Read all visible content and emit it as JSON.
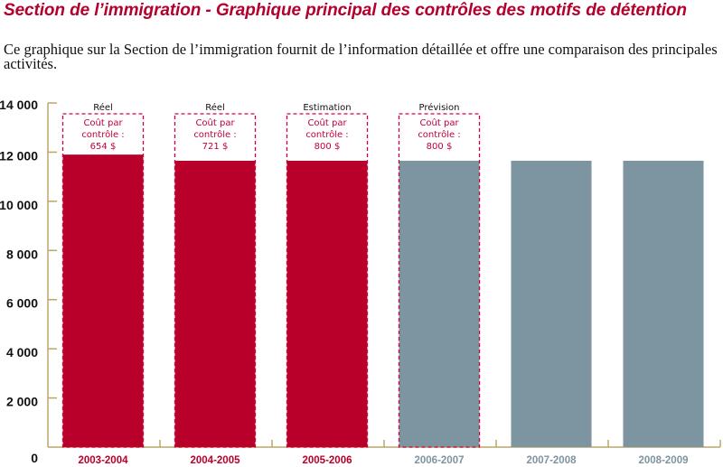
{
  "header": {
    "title": "Section de l’immigration - Graphique principal des contrôles des motifs de détention",
    "description": "Ce graphique sur la Section de l’immigration fournit de l’information détaillée et offre une comparaison des principales activités."
  },
  "colors": {
    "actual": "#b8002a",
    "forecast": "#7c95a0",
    "axis": "#b8a86a",
    "title": "#b3002d"
  },
  "chart_data": {
    "type": "bar",
    "title": "Section de l’immigration - Graphique principal des contrôles des motifs de détention",
    "xlabel": "",
    "ylabel": "",
    "ylim": [
      0,
      14000
    ],
    "yticks": [
      0,
      2000,
      4000,
      6000,
      8000,
      10000,
      12000,
      14000
    ],
    "ytick_labels": [
      "0",
      "2 000",
      "4 000",
      "6 000",
      "8 000",
      "10 000",
      "12 000",
      "14 000"
    ],
    "categories": [
      "2003-2004",
      "2004-2005",
      "2005-2006",
      "2006-2007",
      "2007-2008",
      "2008-2009"
    ],
    "values": [
      11900,
      11650,
      11650,
      11650,
      11650,
      11650
    ],
    "bar_kind": [
      "actual",
      "actual",
      "actual",
      "forecast",
      "forecast",
      "forecast"
    ],
    "annotations": [
      {
        "category": "2003-2004",
        "status": "Réel",
        "cost_line1": "Coût par",
        "cost_line2": "contrôle :",
        "cost_value": "654 $"
      },
      {
        "category": "2004-2005",
        "status": "Réel",
        "cost_line1": "Coût par",
        "cost_line2": "contrôle :",
        "cost_value": "721 $"
      },
      {
        "category": "2005-2006",
        "status": "Estimation",
        "cost_line1": "Coût par",
        "cost_line2": "contrôle :",
        "cost_value": "800 $"
      },
      {
        "category": "2006-2007",
        "status": "Prévision",
        "cost_line1": "Coût par",
        "cost_line2": "contrôle :",
        "cost_value": "800 $"
      }
    ],
    "grid": false,
    "legend": "none"
  }
}
